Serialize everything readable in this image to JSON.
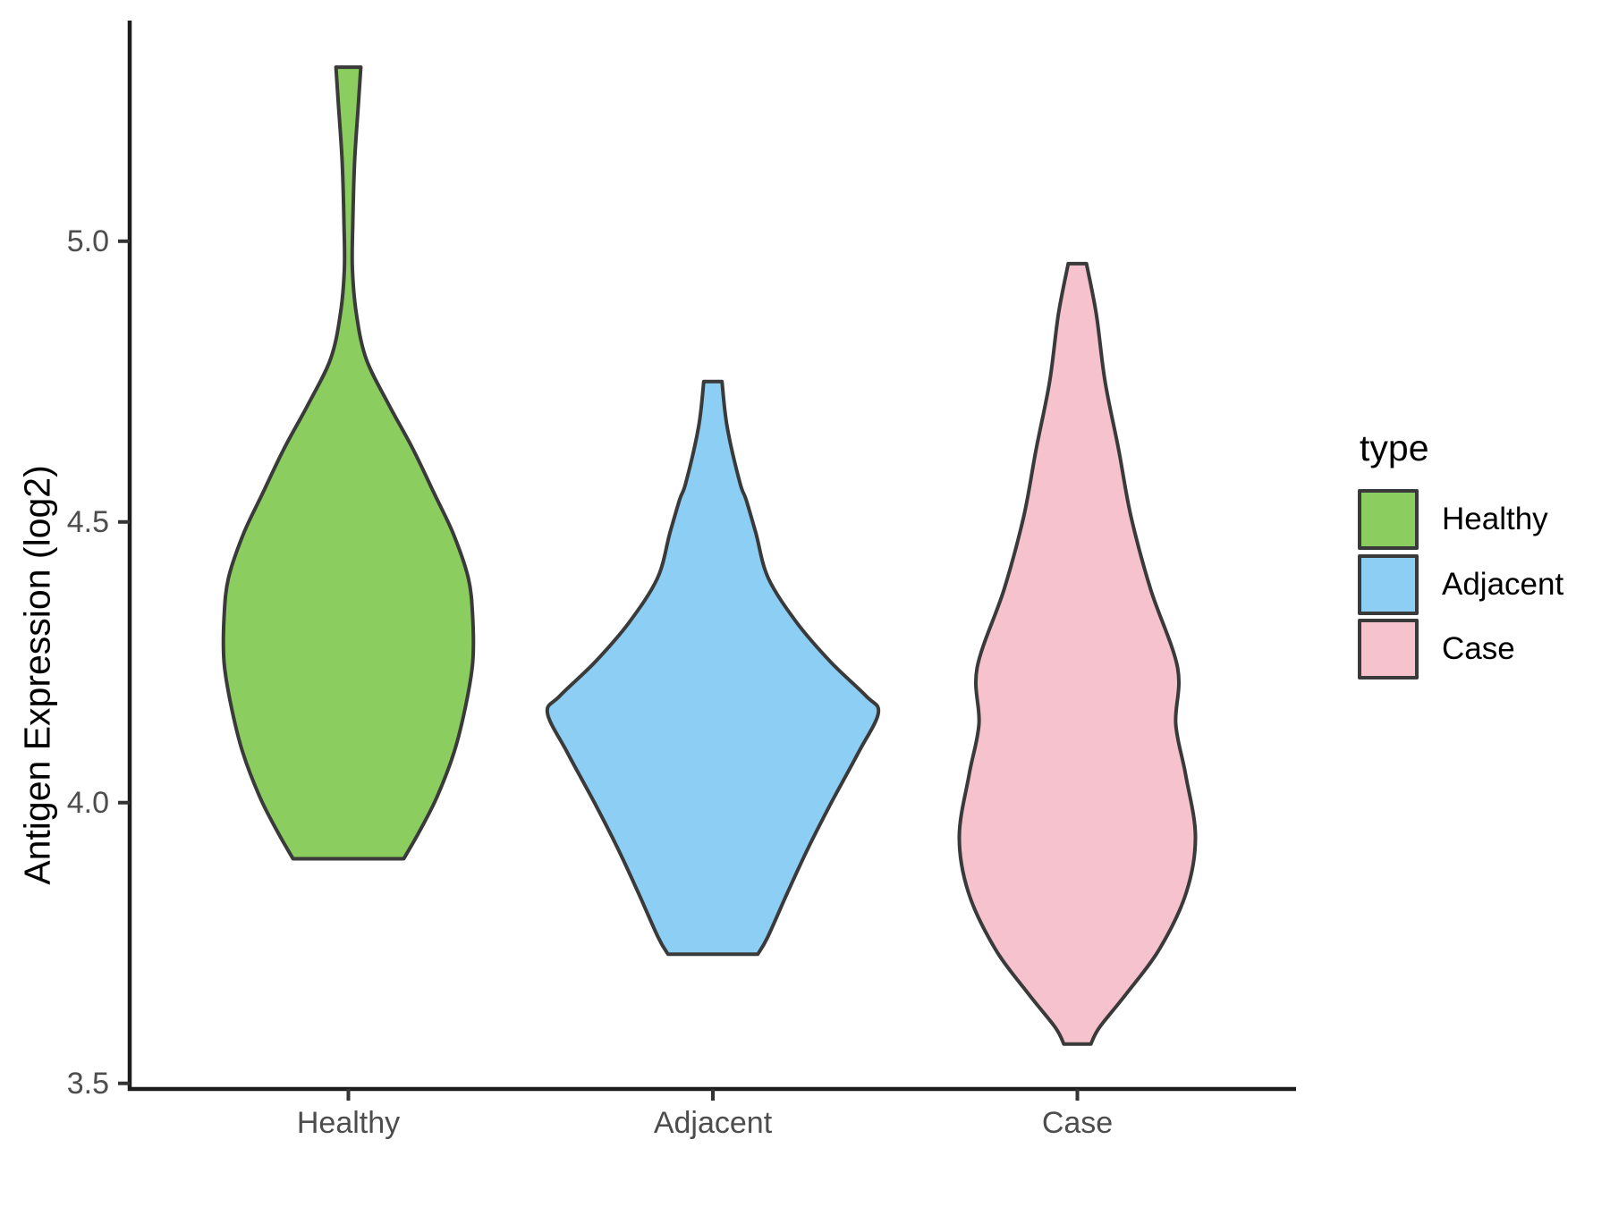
{
  "chart_data": {
    "type": "violin",
    "title": "",
    "xlabel": "",
    "ylabel": "Antigen Expression (log2)",
    "categories": [
      "Healthy",
      "Adjacent",
      "Case"
    ],
    "x_positions": [
      1,
      2,
      3
    ],
    "xlim": [
      0.4,
      3.6
    ],
    "ylim": [
      3.49,
      5.393
    ],
    "y_ticks": [
      3.5,
      4.0,
      4.5,
      5.0
    ],
    "grid": false,
    "legend": {
      "title": "type",
      "position": "right",
      "entries": [
        {
          "label": "Healthy",
          "color": "#8BCE5F"
        },
        {
          "label": "Adjacent",
          "color": "#8DCFF4"
        },
        {
          "label": "Case",
          "color": "#F5C2CE"
        }
      ]
    },
    "style": {
      "violin_outline": "#3A3A3A",
      "axis_line_color": "#1C1C1C",
      "tick_color": "#333333",
      "tick_label_color": "#4D4D4D",
      "background": "#FFFFFF"
    },
    "series": [
      {
        "name": "Healthy",
        "x": 1,
        "fill": "#8BCE5F",
        "profile": [
          [
            5.31,
            0.034
          ],
          [
            5.24,
            0.027
          ],
          [
            5.14,
            0.017
          ],
          [
            5.03,
            0.012
          ],
          [
            4.95,
            0.011
          ],
          [
            4.87,
            0.022
          ],
          [
            4.79,
            0.049
          ],
          [
            4.71,
            0.11
          ],
          [
            4.63,
            0.177
          ],
          [
            4.55,
            0.236
          ],
          [
            4.48,
            0.287
          ],
          [
            4.4,
            0.329
          ],
          [
            4.33,
            0.341
          ],
          [
            4.25,
            0.341
          ],
          [
            4.17,
            0.321
          ],
          [
            4.09,
            0.29
          ],
          [
            4.01,
            0.243
          ],
          [
            3.95,
            0.196
          ],
          [
            3.9,
            0.152
          ]
        ]
      },
      {
        "name": "Adjacent",
        "x": 2,
        "fill": "#8DCFF4",
        "profile": [
          [
            4.75,
            0.025
          ],
          [
            4.67,
            0.039
          ],
          [
            4.57,
            0.074
          ],
          [
            4.54,
            0.091
          ],
          [
            4.48,
            0.118
          ],
          [
            4.4,
            0.152
          ],
          [
            4.32,
            0.231
          ],
          [
            4.25,
            0.324
          ],
          [
            4.19,
            0.42
          ],
          [
            4.16,
            0.454
          ],
          [
            4.09,
            0.4
          ],
          [
            4.0,
            0.325
          ],
          [
            3.92,
            0.262
          ],
          [
            3.84,
            0.205
          ],
          [
            3.76,
            0.15
          ],
          [
            3.73,
            0.123
          ]
        ]
      },
      {
        "name": "Case",
        "x": 3,
        "fill": "#F5C2CE",
        "profile": [
          [
            4.96,
            0.025
          ],
          [
            4.87,
            0.052
          ],
          [
            4.75,
            0.076
          ],
          [
            4.63,
            0.113
          ],
          [
            4.51,
            0.147
          ],
          [
            4.38,
            0.201
          ],
          [
            4.24,
            0.275
          ],
          [
            4.14,
            0.27
          ],
          [
            4.05,
            0.297
          ],
          [
            3.94,
            0.324
          ],
          [
            3.84,
            0.299
          ],
          [
            3.74,
            0.226
          ],
          [
            3.66,
            0.135
          ],
          [
            3.6,
            0.061
          ],
          [
            3.57,
            0.037
          ]
        ]
      }
    ]
  }
}
